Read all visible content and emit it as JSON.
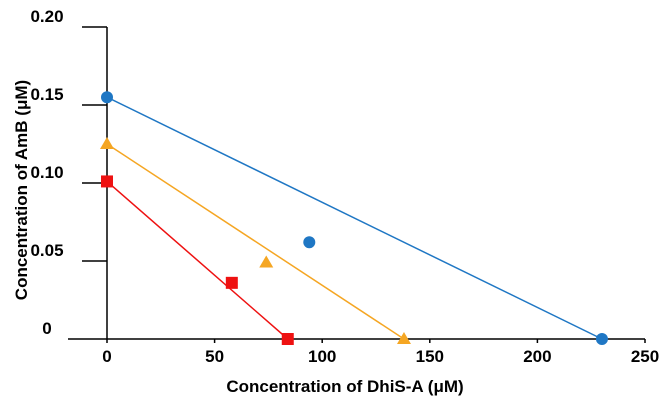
{
  "chart_data": {
    "type": "scatter",
    "title": "",
    "xlabel": "Concentration of DhiS-A (μM)",
    "ylabel": "Concentration of AmB (μM)",
    "xlim": [
      0,
      250
    ],
    "ylim": [
      0,
      0.2
    ],
    "x_ticks": [
      0,
      50,
      100,
      150,
      200,
      250
    ],
    "x_tick_labels": [
      "0",
      "50",
      "100",
      "150",
      "200",
      "250"
    ],
    "y_ticks": [
      0,
      0.05,
      0.1,
      0.15,
      0.2
    ],
    "y_tick_labels": [
      "0",
      "0.05",
      "0.10",
      "0.15",
      "0.20"
    ],
    "grid": false,
    "legend": "none",
    "series": [
      {
        "marker": "circle",
        "color": "#1f77c4",
        "points": [
          [
            0,
            0.155
          ],
          [
            94,
            0.062
          ],
          [
            230,
            0.0
          ]
        ],
        "line": [
          [
            0,
            0.155
          ],
          [
            230,
            0.0
          ]
        ]
      },
      {
        "marker": "triangle",
        "color": "#f5a623",
        "points": [
          [
            0,
            0.125
          ],
          [
            74,
            0.049
          ],
          [
            138,
            0.0
          ]
        ],
        "line": [
          [
            0,
            0.125
          ],
          [
            138,
            0.0
          ]
        ]
      },
      {
        "marker": "square",
        "color": "#ee1111",
        "points": [
          [
            0,
            0.101
          ],
          [
            58,
            0.036
          ],
          [
            84,
            0.0
          ]
        ],
        "line": [
          [
            0,
            0.101
          ],
          [
            84,
            0.0
          ]
        ]
      }
    ]
  }
}
